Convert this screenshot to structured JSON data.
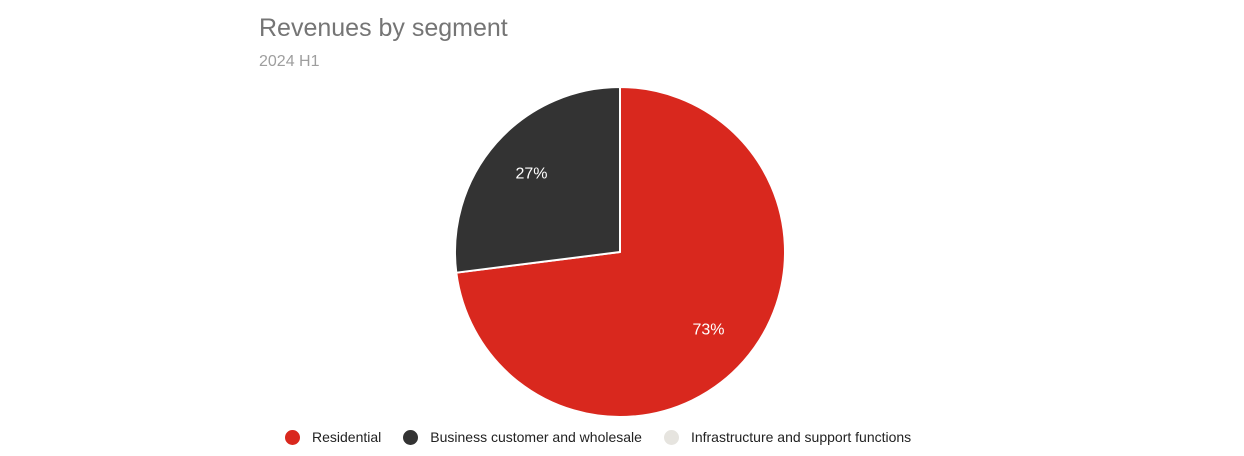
{
  "chart_data": {
    "type": "pie",
    "title": "Revenues by segment",
    "subtitle": "2024 H1",
    "categories": [
      "Residential",
      "Business customer and wholesale",
      "Infrastructure and support functions"
    ],
    "values": [
      73,
      27,
      0
    ],
    "value_labels": [
      "73%",
      "27%",
      ""
    ],
    "colors": [
      "#d9281e",
      "#333333",
      "#e6e4df"
    ],
    "legend_position": "bottom"
  }
}
